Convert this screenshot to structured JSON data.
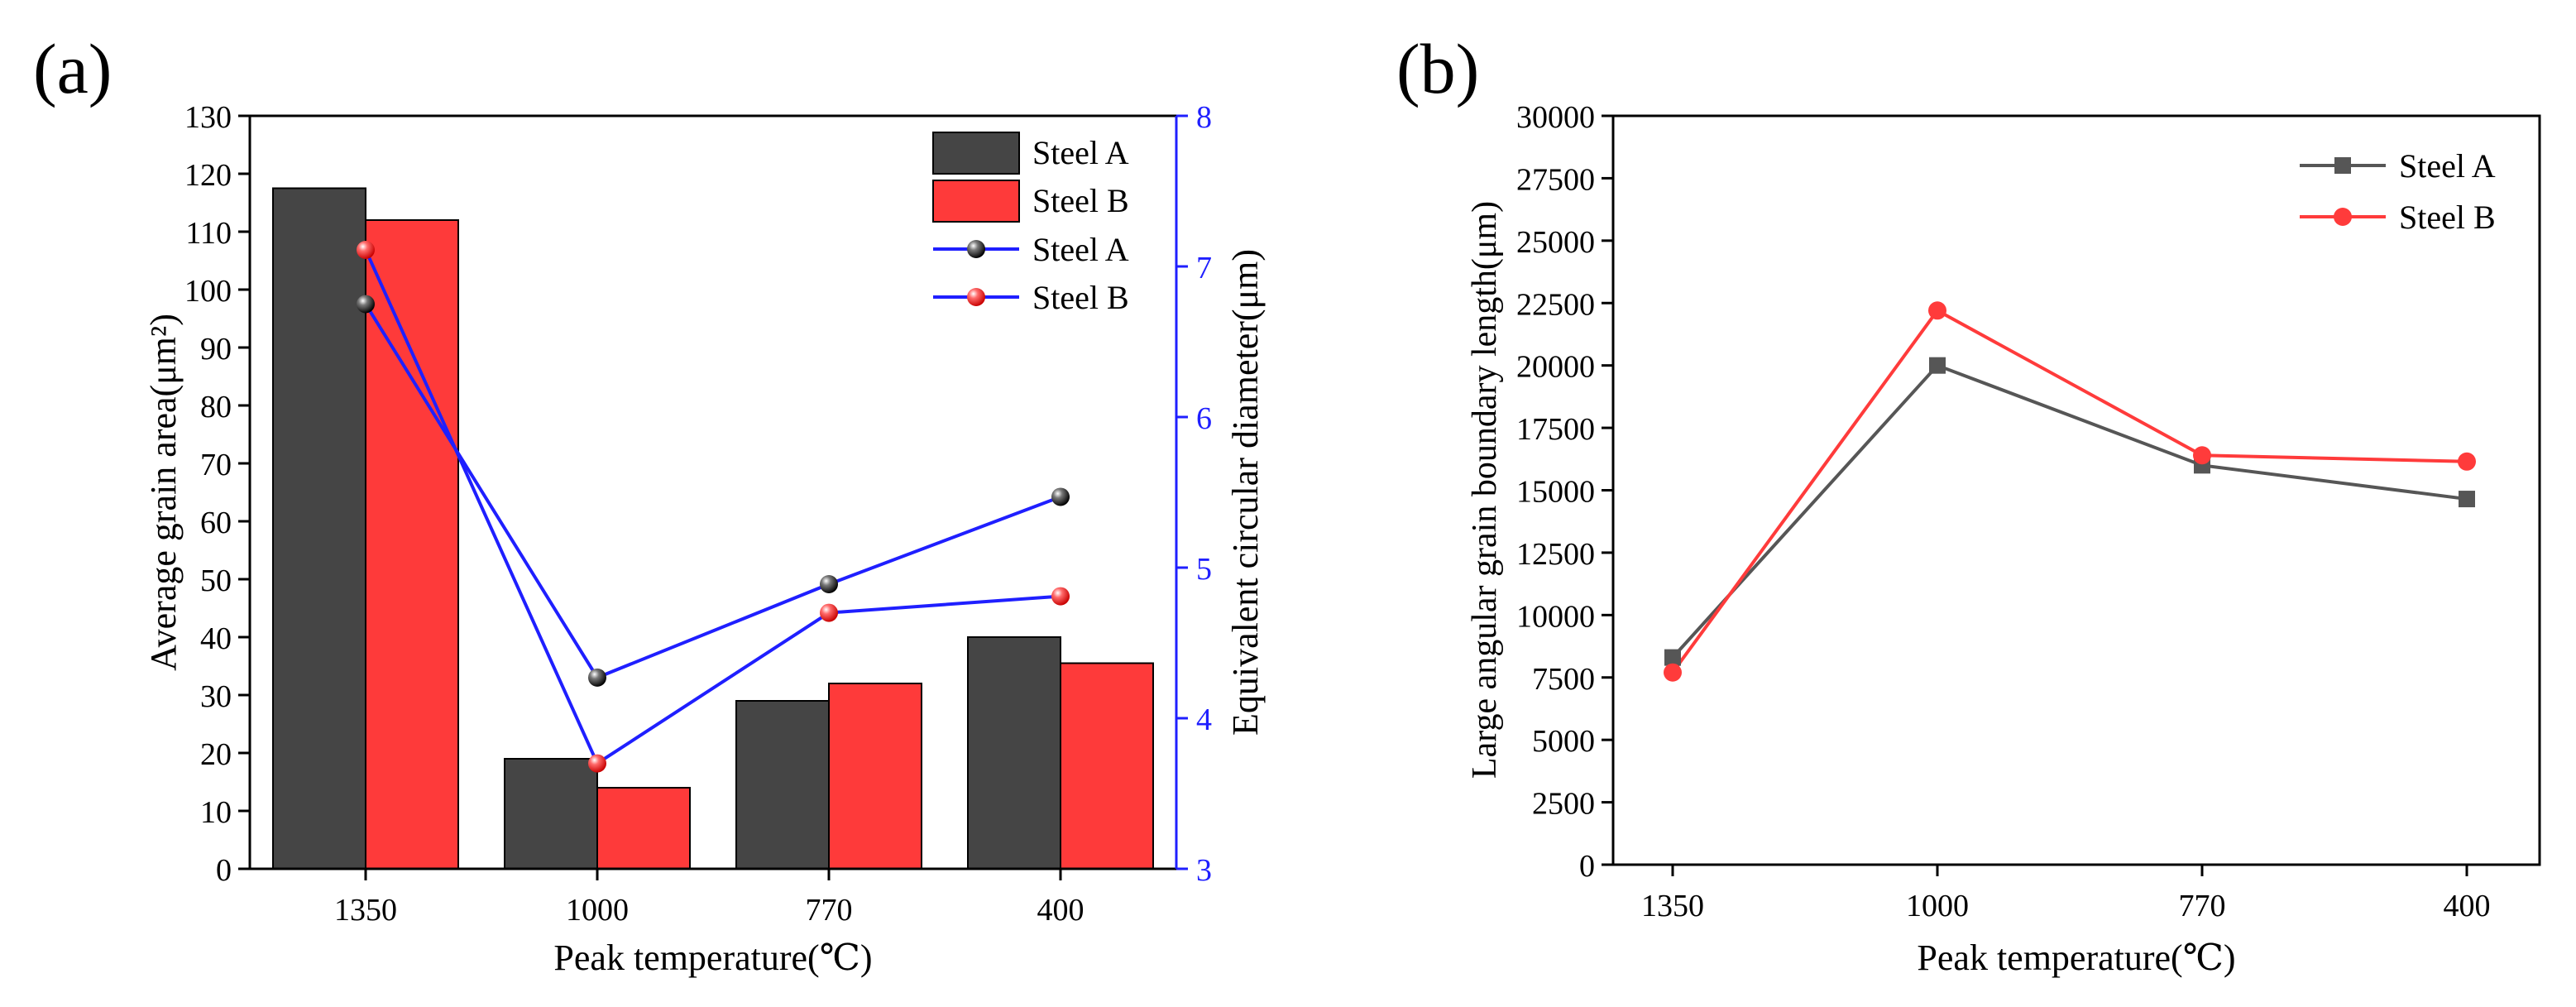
{
  "panels": {
    "a": {
      "label": "(a)"
    },
    "b": {
      "label": "(b)"
    }
  },
  "colors": {
    "steel_a_bar": "#454545",
    "steel_b_bar": "#fe3a3a",
    "line_blue": "#1f1fff",
    "steel_a_line_b": "#565656",
    "steel_b_line_b": "#ff3b3b",
    "axis": "#000000"
  },
  "chart_data": [
    {
      "id": "a",
      "type": "bar",
      "title": "",
      "categories": [
        "1350",
        "1000",
        "770",
        "400"
      ],
      "xlabel": "Peak temperature(℃)",
      "ylabel": "Average grain area(μm²)",
      "ylim": [
        0,
        130
      ],
      "yticks": [
        0,
        10,
        20,
        30,
        40,
        50,
        60,
        70,
        80,
        90,
        100,
        110,
        120,
        130
      ],
      "series": [
        {
          "name": "Steel A",
          "kind": "bar",
          "values": [
            117.5,
            19,
            29,
            40
          ]
        },
        {
          "name": "Steel B",
          "kind": "bar",
          "values": [
            112,
            14,
            32,
            35.5
          ]
        }
      ],
      "secondary_axis": {
        "ylabel": "Equivalent circular diameter(μm)",
        "ylim": [
          3,
          8
        ],
        "yticks": [
          3,
          4,
          5,
          6,
          7,
          8
        ],
        "series": [
          {
            "name": "Steel A",
            "kind": "line",
            "marker": "black-sphere",
            "values": [
              6.75,
              4.27,
              4.89,
              5.47
            ]
          },
          {
            "name": "Steel B",
            "kind": "line",
            "marker": "red-sphere",
            "values": [
              7.11,
              3.7,
              4.7,
              4.81
            ]
          }
        ]
      },
      "legend": {
        "position": "top-right",
        "entries": [
          "Steel A",
          "Steel B",
          "Steel A",
          "Steel B"
        ]
      },
      "grid": false
    },
    {
      "id": "b",
      "type": "line",
      "title": "",
      "categories": [
        "1350",
        "1000",
        "770",
        "400"
      ],
      "xlabel": "Peak temperature(℃)",
      "ylabel": "Large angular grain boundary length(μm)",
      "ylim": [
        0,
        30000
      ],
      "yticks": [
        0,
        2500,
        5000,
        7500,
        10000,
        12500,
        15000,
        17500,
        20000,
        22500,
        25000,
        27500,
        30000
      ],
      "series": [
        {
          "name": "Steel A",
          "marker": "square",
          "values": [
            8300,
            20000,
            16000,
            14650
          ]
        },
        {
          "name": "Steel B",
          "marker": "circle",
          "values": [
            7700,
            22200,
            16400,
            16150
          ]
        }
      ],
      "legend": {
        "position": "top-right",
        "entries": [
          "Steel A",
          "Steel B"
        ]
      },
      "grid": false
    }
  ]
}
